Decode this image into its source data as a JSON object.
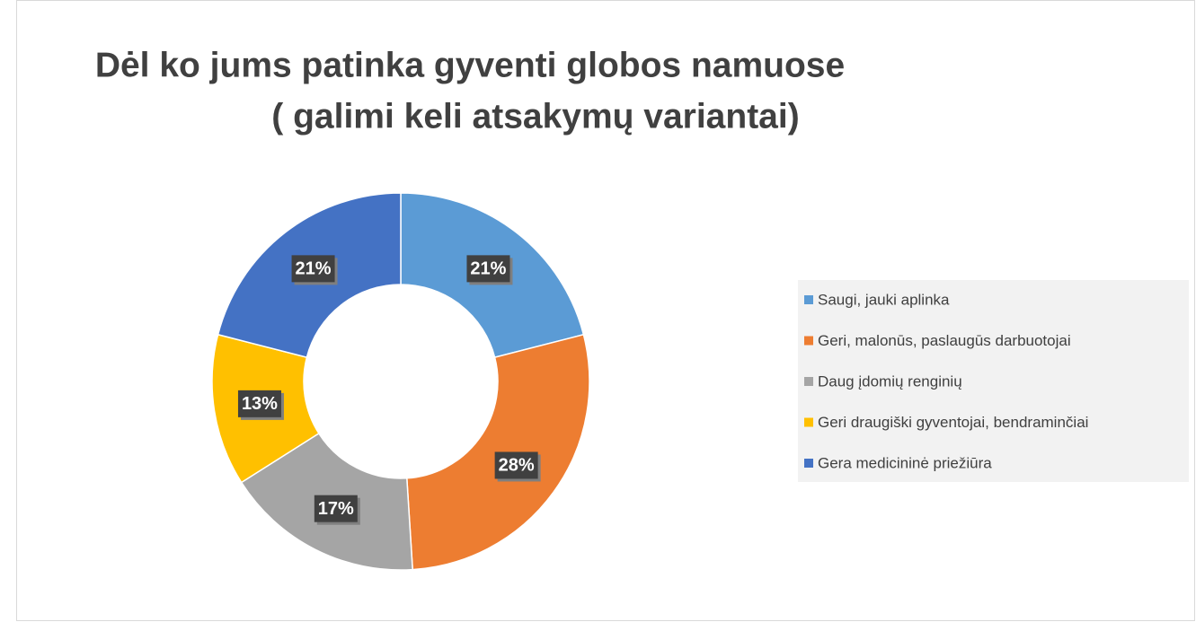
{
  "chart_data": {
    "type": "donut",
    "title": [
      "Dėl ko jums patinka gyventi globos namuose",
      "( galimi keli atsakymų variantai)"
    ],
    "categories": [
      "Saugi, jauki aplinka",
      "Geri, malonūs, paslaugūs darbuotojai",
      "Daug įdomių renginių",
      "Geri draugiški gyventojai, bendraminčiai",
      "Gera medicininė priežiūra"
    ],
    "values": [
      21,
      28,
      17,
      13,
      21
    ],
    "value_labels": [
      "21%",
      "28%",
      "17%",
      "13%",
      "21%"
    ],
    "colors": [
      "#5b9bd5",
      "#ed7d31",
      "#a5a5a5",
      "#ffc000",
      "#4472c4"
    ],
    "legend": "right"
  }
}
